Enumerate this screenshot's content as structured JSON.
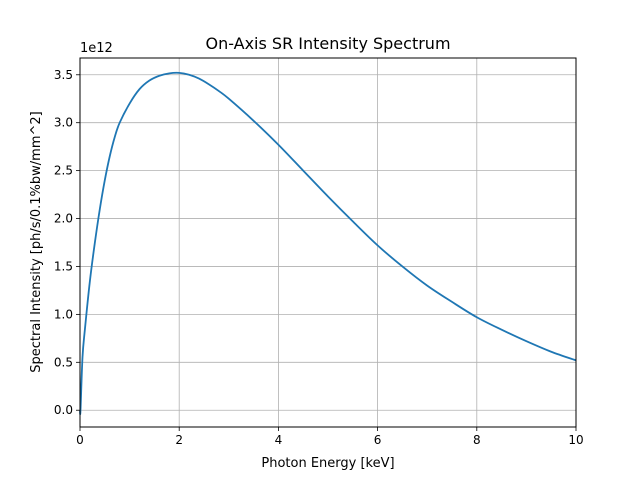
{
  "chart_data": {
    "type": "line",
    "title": "On-Axis SR Intensity Spectrum",
    "xlabel": "Photon Energy [keV]",
    "ylabel": "Spectral Intensity [ph/s/0.1%bw/mm^2]",
    "y_offset_label": "1e12",
    "xlim": [
      0,
      10
    ],
    "ylim": [
      -0.175,
      3.675
    ],
    "y_scale_factor": 1000000000000.0,
    "x_ticks": [
      0,
      2,
      4,
      6,
      8,
      10
    ],
    "x_tick_labels": [
      "0",
      "2",
      "4",
      "6",
      "8",
      "10"
    ],
    "y_ticks": [
      0.0,
      0.5,
      1.0,
      1.5,
      2.0,
      2.5,
      3.0,
      3.5
    ],
    "y_tick_labels": [
      "0.0",
      "0.5",
      "1.0",
      "1.5",
      "2.0",
      "2.5",
      "3.0",
      "3.5"
    ],
    "grid": true,
    "series": [
      {
        "color": "#1f77b4",
        "x": [
          0.01,
          0.05,
          0.1,
          0.2,
          0.3,
          0.4,
          0.5,
          0.6,
          0.7,
          0.8,
          1.0,
          1.2,
          1.4,
          1.6,
          1.8,
          2.0,
          2.2,
          2.4,
          2.6,
          2.8,
          3.0,
          3.5,
          4.0,
          4.5,
          5.0,
          5.5,
          6.0,
          6.5,
          7.0,
          7.5,
          8.0,
          8.5,
          9.0,
          9.5,
          10.0
        ],
        "y": [
          0.0,
          0.55,
          0.85,
          1.35,
          1.75,
          2.1,
          2.4,
          2.65,
          2.85,
          3.0,
          3.2,
          3.35,
          3.44,
          3.49,
          3.515,
          3.52,
          3.5,
          3.46,
          3.4,
          3.33,
          3.25,
          3.02,
          2.77,
          2.5,
          2.23,
          1.97,
          1.72,
          1.5,
          1.3,
          1.13,
          0.97,
          0.84,
          0.72,
          0.61,
          0.52
        ]
      }
    ]
  }
}
